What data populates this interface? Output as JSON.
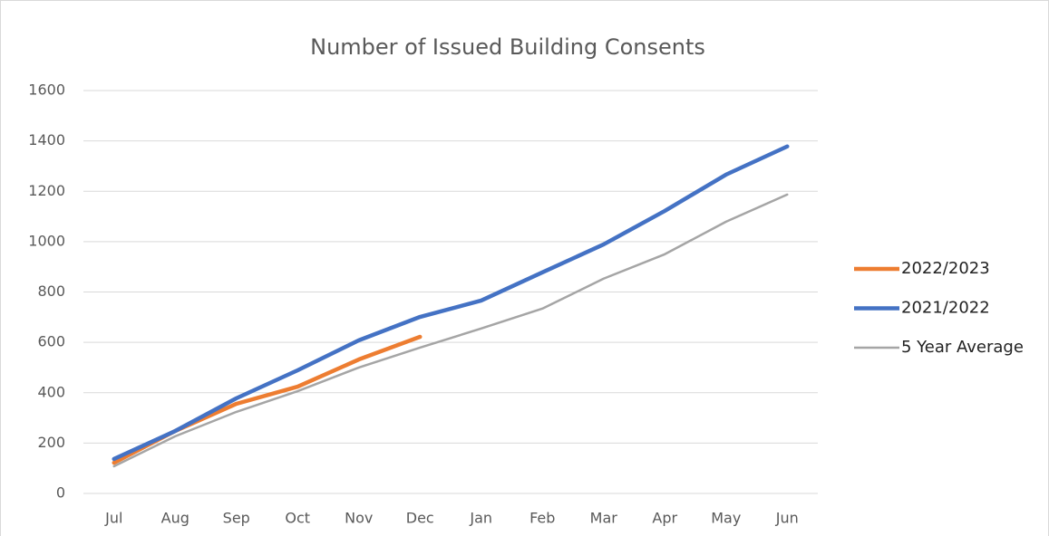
{
  "chart_data": {
    "type": "line",
    "title": "Number of Issued Building Consents",
    "categories": [
      "Jul",
      "Aug",
      "Sep",
      "Oct",
      "Nov",
      "Dec",
      "Jan",
      "Feb",
      "Mar",
      "Apr",
      "May",
      "Jun"
    ],
    "series": [
      {
        "name": "2022/2023",
        "color": "#ed7d31",
        "values": [
          122,
          248,
          356,
          424,
          532,
          622,
          null,
          null,
          null,
          null,
          null,
          null
        ]
      },
      {
        "name": "2021/2022",
        "color": "#4472c4",
        "values": [
          137,
          248,
          378,
          489,
          608,
          701,
          766,
          878,
          989,
          1122,
          1266,
          1378
        ]
      },
      {
        "name": "5 Year Average",
        "color": "#a5a5a5",
        "values": [
          108,
          227,
          324,
          406,
          500,
          579,
          655,
          734,
          853,
          950,
          1079,
          1187
        ]
      }
    ],
    "ylim": [
      0,
      1600
    ],
    "yticks": [
      0,
      200,
      400,
      600,
      800,
      1000,
      1200,
      1400,
      1600
    ],
    "grid": true,
    "legend": "right"
  }
}
